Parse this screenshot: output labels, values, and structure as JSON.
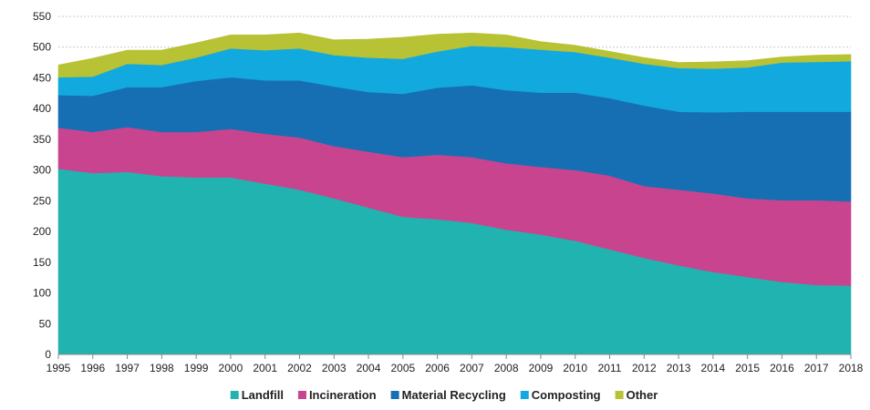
{
  "chart_data": {
    "type": "area",
    "stacked": true,
    "title": "",
    "xlabel": "",
    "ylabel": "",
    "x": [
      1995,
      1996,
      1997,
      1998,
      1999,
      2000,
      2001,
      2002,
      2003,
      2004,
      2005,
      2006,
      2007,
      2008,
      2009,
      2010,
      2011,
      2012,
      2013,
      2014,
      2015,
      2016,
      2017,
      2018
    ],
    "ylim": [
      0,
      550
    ],
    "yticks": [
      0,
      50,
      100,
      150,
      200,
      250,
      300,
      350,
      400,
      450,
      500,
      550
    ],
    "grid": true,
    "legend": "bottom-center",
    "series": [
      {
        "name": "Landfill",
        "color": "#21b3b0",
        "values": [
          302,
          295,
          297,
          290,
          288,
          288,
          278,
          268,
          254,
          239,
          224,
          220,
          214,
          203,
          195,
          185,
          171,
          157,
          145,
          134,
          126,
          118,
          113,
          112
        ]
      },
      {
        "name": "Incineration",
        "color": "#c9448f",
        "values": [
          67,
          67,
          73,
          72,
          74,
          79,
          81,
          85,
          85,
          91,
          97,
          105,
          107,
          108,
          110,
          115,
          120,
          117,
          123,
          128,
          128,
          133,
          138,
          137
        ]
      },
      {
        "name": "Material Recycling",
        "color": "#176fb3",
        "values": [
          53,
          59,
          65,
          73,
          83,
          84,
          87,
          93,
          97,
          97,
          103,
          109,
          117,
          119,
          121,
          126,
          126,
          131,
          127,
          132,
          141,
          144,
          144,
          146
        ]
      },
      {
        "name": "Composting",
        "color": "#12a9df",
        "values": [
          29,
          31,
          38,
          36,
          38,
          47,
          49,
          52,
          51,
          56,
          57,
          59,
          64,
          70,
          70,
          66,
          66,
          68,
          71,
          71,
          72,
          80,
          81,
          82
        ]
      },
      {
        "name": "Other",
        "color": "#b7c234",
        "values": [
          20,
          30,
          22,
          24,
          24,
          22,
          25,
          25,
          25,
          30,
          35,
          28,
          21,
          20,
          13,
          11,
          10,
          10,
          9,
          11,
          11,
          9,
          11,
          11
        ]
      }
    ]
  }
}
